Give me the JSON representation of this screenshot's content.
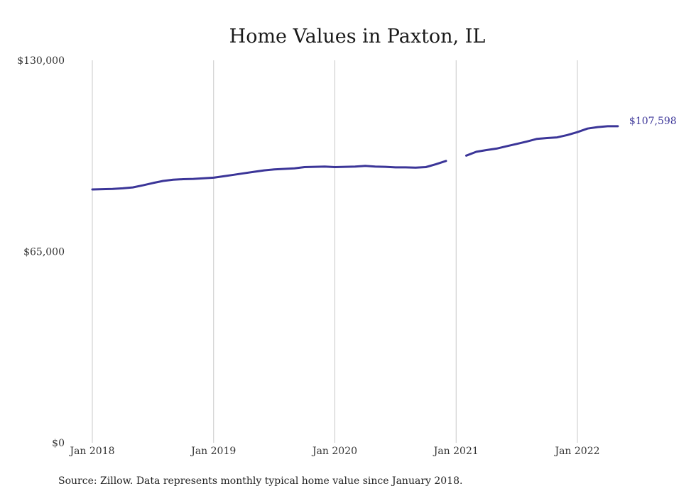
{
  "chart_data": {
    "type": "line",
    "title": "Home Values in Paxton, IL",
    "xlabel": "",
    "ylabel": "",
    "ylim": [
      0,
      130000
    ],
    "xlim": [
      "2018-01",
      "2022-07"
    ],
    "y_ticks": [
      {
        "value": 0,
        "label": "$0"
      },
      {
        "value": 65000,
        "label": "$65,000"
      },
      {
        "value": 130000,
        "label": "$130,000"
      }
    ],
    "x_ticks": [
      {
        "value": "2018-01",
        "label": "Jan 2018"
      },
      {
        "value": "2019-01",
        "label": "Jan 2019"
      },
      {
        "value": "2020-01",
        "label": "Jan 2020"
      },
      {
        "value": "2021-01",
        "label": "Jan 2021"
      },
      {
        "value": "2022-01",
        "label": "Jan 2022"
      }
    ],
    "grid": {
      "x": true,
      "y": false
    },
    "line_color": "#3b3598",
    "series": [
      {
        "segments": [
          [
            {
              "x": "2018-01",
              "y": 86100
            },
            {
              "x": "2018-02",
              "y": 86200
            },
            {
              "x": "2018-03",
              "y": 86300
            },
            {
              "x": "2018-04",
              "y": 86500
            },
            {
              "x": "2018-05",
              "y": 86800
            },
            {
              "x": "2018-06",
              "y": 87500
            },
            {
              "x": "2018-07",
              "y": 88300
            },
            {
              "x": "2018-08",
              "y": 89000
            },
            {
              "x": "2018-09",
              "y": 89400
            },
            {
              "x": "2018-10",
              "y": 89600
            },
            {
              "x": "2018-11",
              "y": 89700
            },
            {
              "x": "2018-12",
              "y": 89900
            },
            {
              "x": "2019-01",
              "y": 90100
            },
            {
              "x": "2019-02",
              "y": 90600
            },
            {
              "x": "2019-03",
              "y": 91100
            },
            {
              "x": "2019-04",
              "y": 91600
            },
            {
              "x": "2019-05",
              "y": 92100
            },
            {
              "x": "2019-06",
              "y": 92600
            },
            {
              "x": "2019-07",
              "y": 92900
            },
            {
              "x": "2019-08",
              "y": 93100
            },
            {
              "x": "2019-09",
              "y": 93300
            },
            {
              "x": "2019-10",
              "y": 93700
            },
            {
              "x": "2019-11",
              "y": 93800
            },
            {
              "x": "2019-12",
              "y": 93900
            },
            {
              "x": "2020-01",
              "y": 93700
            },
            {
              "x": "2020-02",
              "y": 93800
            },
            {
              "x": "2020-03",
              "y": 93900
            },
            {
              "x": "2020-04",
              "y": 94100
            },
            {
              "x": "2020-05",
              "y": 93900
            },
            {
              "x": "2020-06",
              "y": 93800
            },
            {
              "x": "2020-07",
              "y": 93600
            },
            {
              "x": "2020-08",
              "y": 93600
            },
            {
              "x": "2020-09",
              "y": 93500
            },
            {
              "x": "2020-10",
              "y": 93700
            },
            {
              "x": "2020-11",
              "y": 94700
            },
            {
              "x": "2020-12",
              "y": 95800
            }
          ],
          [
            {
              "x": "2021-02",
              "y": 97600
            },
            {
              "x": "2021-03",
              "y": 98900
            },
            {
              "x": "2021-04",
              "y": 99500
            },
            {
              "x": "2021-05",
              "y": 100000
            },
            {
              "x": "2021-06",
              "y": 100800
            },
            {
              "x": "2021-07",
              "y": 101600
            },
            {
              "x": "2021-08",
              "y": 102400
            },
            {
              "x": "2021-09",
              "y": 103300
            },
            {
              "x": "2021-10",
              "y": 103600
            },
            {
              "x": "2021-11",
              "y": 103800
            },
            {
              "x": "2021-12",
              "y": 104600
            },
            {
              "x": "2022-01",
              "y": 105600
            },
            {
              "x": "2022-02",
              "y": 106800
            },
            {
              "x": "2022-03",
              "y": 107300
            },
            {
              "x": "2022-04",
              "y": 107598
            },
            {
              "x": "2022-05",
              "y": 107598
            }
          ]
        ]
      }
    ],
    "end_label": "$107,598",
    "source_note": "Source: Zillow. Data represents monthly typical home value since January 2018."
  }
}
